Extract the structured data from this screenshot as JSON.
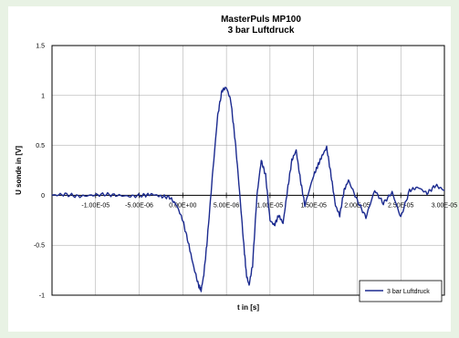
{
  "colors": {
    "frame": "#e8f2e4",
    "panel": "#ffffff",
    "series": "#1b2a8f",
    "grid": "#a0a0a0",
    "axis": "#000000"
  },
  "chart_data": {
    "type": "line",
    "title": "MasterPuls MP100",
    "subtitle": "3 bar Luftdruck",
    "xlabel": "t in [s]",
    "ylabel": "U sonde in [V]",
    "xlim": [
      -1.5e-05,
      3e-05
    ],
    "ylim": [
      -1,
      1.5
    ],
    "xticks": [
      -1e-05,
      -5e-06,
      0,
      5e-06,
      1e-05,
      1.5e-05,
      2e-05,
      2.5e-05,
      3e-05
    ],
    "xtick_labels": [
      "-1.00E-05",
      "-5.00E-06",
      "0.00E+00",
      "5.00E-06",
      "1.00E-05",
      "1.50E-05",
      "2.00E-05",
      "2.50E-05",
      "3.00E-05"
    ],
    "yticks": [
      -1,
      -0.5,
      0,
      0.5,
      1,
      1.5
    ],
    "ytick_labels": [
      "-1",
      "-0.5",
      "0",
      "0.5",
      "1",
      "1.5"
    ],
    "grid": true,
    "legend": {
      "position": "bottom-right",
      "entries": [
        "3 bar Luftdruck"
      ]
    },
    "series": [
      {
        "name": "3 bar Luftdruck",
        "x": [
          -1.5e-05,
          -1.35e-05,
          -1.2e-05,
          -1.05e-05,
          -9e-06,
          -7.5e-06,
          -6e-06,
          -4.5e-06,
          -3.5e-06,
          -2.5e-06,
          -1.5e-06,
          -7e-07,
          0,
          7e-07,
          1.2e-06,
          1.8e-06,
          2.1e-06,
          2.4e-06,
          2.8e-06,
          3.4e-06,
          4e-06,
          4.5e-06,
          5e-06,
          5.5e-06,
          6e-06,
          6.5e-06,
          7e-06,
          7.3e-06,
          7.6e-06,
          8e-06,
          8.5e-06,
          9e-06,
          9.5e-06,
          1e-05,
          1.05e-05,
          1.1e-05,
          1.15e-05,
          1.2e-05,
          1.25e-05,
          1.3e-05,
          1.35e-05,
          1.4e-05,
          1.5e-05,
          1.55e-05,
          1.6e-05,
          1.65e-05,
          1.7e-05,
          1.75e-05,
          1.8e-05,
          1.85e-05,
          1.9e-05,
          2e-05,
          2.1e-05,
          2.2e-05,
          2.3e-05,
          2.4e-05,
          2.5e-05,
          2.6e-05,
          2.7e-05,
          2.8e-05,
          2.9e-05,
          3e-05
        ],
        "y": [
          0,
          0.01,
          -0.01,
          0,
          0.01,
          0,
          -0.01,
          0,
          0.01,
          -0.01,
          -0.02,
          -0.1,
          -0.25,
          -0.5,
          -0.7,
          -0.9,
          -0.95,
          -0.8,
          -0.45,
          0.2,
          0.8,
          1.05,
          1.08,
          0.95,
          0.55,
          0.05,
          -0.5,
          -0.8,
          -0.9,
          -0.7,
          0,
          0.35,
          0.2,
          -0.25,
          -0.3,
          -0.2,
          -0.28,
          0.05,
          0.35,
          0.45,
          0.15,
          -0.1,
          0.2,
          0.3,
          0.4,
          0.48,
          0.2,
          -0.1,
          -0.2,
          0.05,
          0.15,
          -0.05,
          -0.22,
          0.05,
          -0.08,
          0.03,
          -0.22,
          0.05,
          0.08,
          0.02,
          0.1,
          0.05
        ]
      }
    ]
  }
}
